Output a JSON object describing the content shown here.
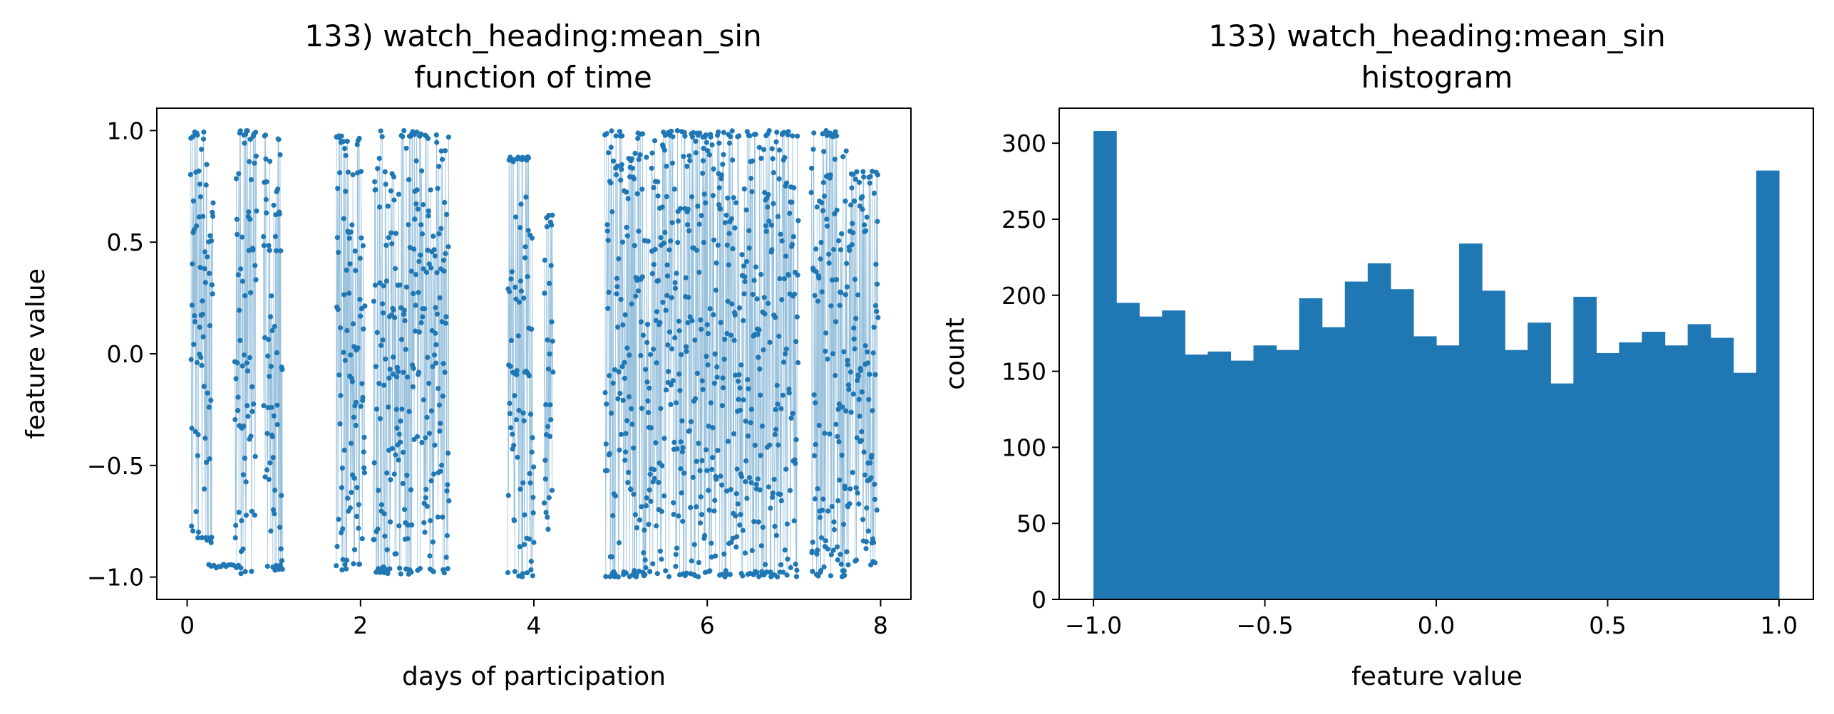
{
  "colors": {
    "series": "#1f77b4",
    "axes": "#000000",
    "background": "#ffffff"
  },
  "chart_data": [
    {
      "type": "line",
      "title": "133) watch_heading:mean_sin",
      "subtitle": "function of time",
      "xlabel": "days of participation",
      "ylabel": "feature value",
      "xlim": [
        -0.35,
        8.35
      ],
      "ylim": [
        -1.1,
        1.1
      ],
      "xticks": [
        0,
        2,
        4,
        6,
        8
      ],
      "xtick_labels": [
        "0",
        "2",
        "4",
        "6",
        "8"
      ],
      "yticks": [
        -1.0,
        -0.5,
        0.0,
        0.5,
        1.0
      ],
      "ytick_labels": [
        "−1.0",
        "−0.5",
        "0.0",
        "0.5",
        "1.0"
      ],
      "grid": false,
      "marker": "dot",
      "series": [
        {
          "segments": [
            {
              "x_range": [
                0.04,
                0.3
              ],
              "y_range": [
                -0.85,
                1.0
              ]
            },
            {
              "x_range": [
                0.55,
                0.8
              ],
              "y_range": [
                -1.0,
                1.0
              ]
            },
            {
              "x_range": [
                0.88,
                1.1
              ],
              "y_range": [
                -0.97,
                0.98
              ]
            },
            {
              "x_range": [
                1.72,
                2.05
              ],
              "y_range": [
                -0.97,
                0.98
              ]
            },
            {
              "x_range": [
                2.15,
                3.02
              ],
              "y_range": [
                -0.99,
                1.0
              ]
            },
            {
              "x_range": [
                3.7,
                4.0
              ],
              "y_range": [
                -1.0,
                0.89
              ]
            },
            {
              "x_range": [
                4.12,
                4.22
              ],
              "y_range": [
                -0.79,
                0.63
              ]
            },
            {
              "x_range": [
                4.82,
                5.95
              ],
              "y_range": [
                -1.0,
                1.0
              ]
            },
            {
              "x_range": [
                5.95,
                7.05
              ],
              "y_range": [
                -1.0,
                1.0
              ]
            },
            {
              "x_range": [
                7.2,
                7.62
              ],
              "y_range": [
                -1.0,
                1.0
              ]
            },
            {
              "x_range": [
                7.62,
                7.97
              ],
              "y_range": [
                -0.95,
                0.82
              ]
            }
          ],
          "flat_runs": [
            {
              "x_range": [
                0.25,
                0.62
              ],
              "y": -0.95
            }
          ]
        }
      ]
    },
    {
      "type": "bar",
      "title": "133) watch_heading:mean_sin",
      "subtitle": "histogram",
      "xlabel": "feature value",
      "ylabel": "count",
      "xlim": [
        -1.1,
        1.1
      ],
      "ylim": [
        0,
        323
      ],
      "xticks": [
        -1.0,
        -0.5,
        0.0,
        0.5,
        1.0
      ],
      "xtick_labels": [
        "−1.0",
        "−0.5",
        "0.0",
        "0.5",
        "1.0"
      ],
      "yticks": [
        0,
        50,
        100,
        150,
        200,
        250,
        300
      ],
      "ytick_labels": [
        "0",
        "50",
        "100",
        "150",
        "200",
        "250",
        "300"
      ],
      "grid": false,
      "bin_edges_range": [
        -1.0,
        1.0
      ],
      "bins": 30,
      "values": [
        308,
        195,
        186,
        190,
        161,
        163,
        157,
        167,
        164,
        198,
        179,
        209,
        221,
        204,
        173,
        167,
        234,
        203,
        164,
        182,
        142,
        199,
        162,
        169,
        176,
        167,
        181,
        172,
        149,
        282
      ]
    }
  ]
}
